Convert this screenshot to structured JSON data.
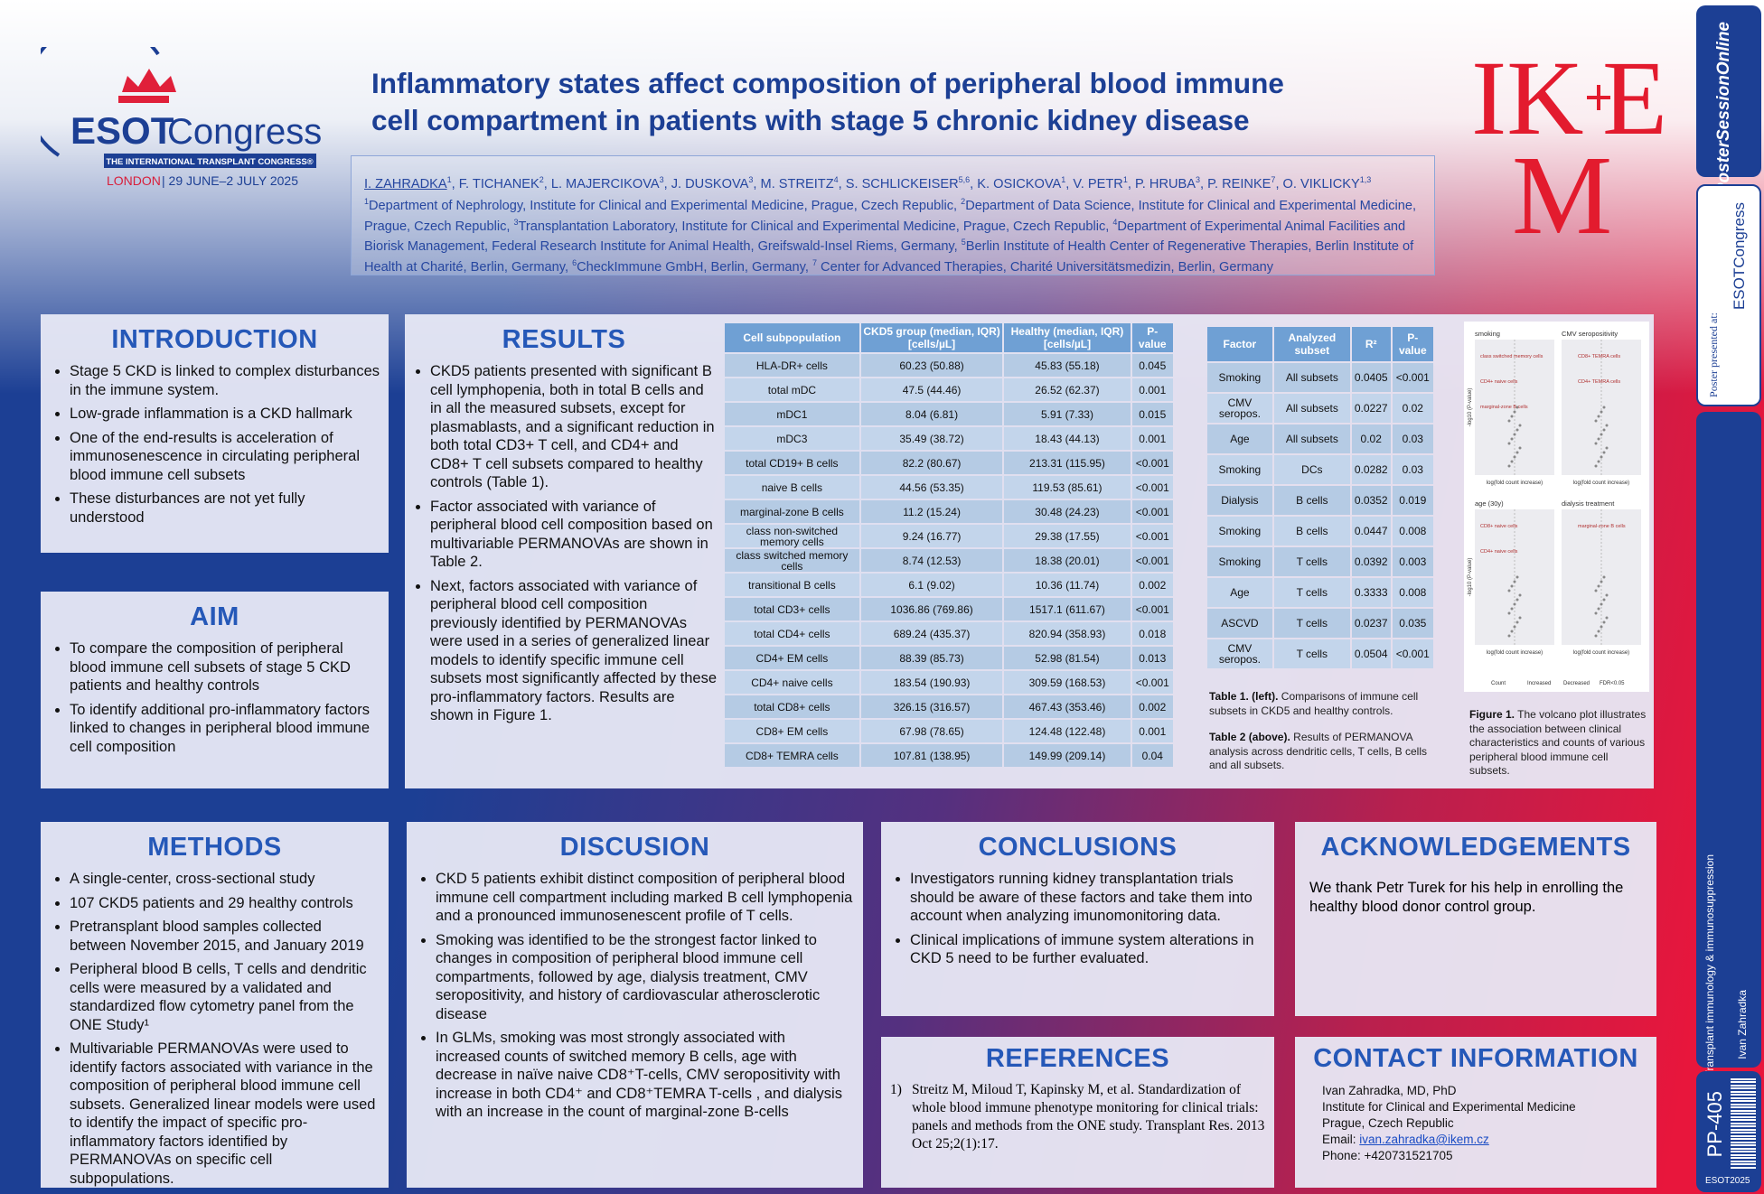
{
  "logos": {
    "esot_word": "ESOT",
    "esot_congress": "Congress",
    "esot_tagline": "THE INTERNATIONAL TRANSPLANT CONGRESS®",
    "esot_city": "LONDON",
    "esot_dates": "| 29 JUNE–2 JULY 2025",
    "ikem_letters": [
      "IK",
      "E",
      "M"
    ]
  },
  "header": {
    "title_lines": [
      "Inflammatory states affect composition of peripheral blood immune",
      "cell compartment in patients with stage 5 chronic kidney disease"
    ],
    "authors": [
      {
        "name": "I. ZAHRADKA",
        "sup": "1"
      },
      {
        "name": "F. TICHANEK",
        "sup": "2"
      },
      {
        "name": "L. MAJERCIKOVA",
        "sup": "3"
      },
      {
        "name": "J. DUSKOVA",
        "sup": "3"
      },
      {
        "name": "M. STREITZ",
        "sup": "4"
      },
      {
        "name": "S. SCHLICKEISER",
        "sup": "5,6"
      },
      {
        "name": "K. OSICKOVA",
        "sup": "1"
      },
      {
        "name": "V. PETR",
        "sup": "1"
      },
      {
        "name": "P. HRUBA",
        "sup": "3"
      },
      {
        "name": "P. REINKE",
        "sup": "7"
      },
      {
        "name": "O. VIKLICKY",
        "sup": "1,3"
      }
    ],
    "affiliations": [
      {
        "sup": "1",
        "text": "Department of Nephrology, Institute for Clinical and Experimental Medicine, Prague, Czech Republic, "
      },
      {
        "sup": "2",
        "text": "Department of Data Science, Institute for Clinical and Experimental Medicine, Prague, Czech Republic, "
      },
      {
        "sup": "3",
        "text": "Transplantation Laboratory, Institute for Clinical and Experimental Medicine, Prague, Czech Republic, "
      },
      {
        "sup": "4",
        "text": "Department of Experimental Animal Facilities and Biorisk Management, Federal Research Institute for Animal Health, Greifswald-Insel Riems, Germany, "
      },
      {
        "sup": "5",
        "text": "Berlin Institute of Health Center of Regenerative Therapies, Berlin Institute of Health at Charité, Berlin, Germany, "
      },
      {
        "sup": "6",
        "text": "CheckImmune GmbH, Berlin, Germany, "
      },
      {
        "sup": "7",
        "text": " Center for Advanced Therapies, Charité Universitätsmedizin, Berlin, Germany"
      }
    ]
  },
  "introduction": {
    "title": "INTRODUCTION",
    "bullets": [
      "Stage 5 CKD is linked to complex disturbances in the immune system.",
      "Low-grade inflammation is a CKD hallmark",
      "One of the end-results is acceleration of immunosenescence in circulating peripheral blood immune cell subsets",
      "These disturbances are not yet fully understood"
    ]
  },
  "aim": {
    "title": "AIM",
    "bullets": [
      "To compare the composition of peripheral blood immune cell subsets of stage 5 CKD patients and healthy controls",
      "To identify additional pro-inflammatory factors linked to changes in peripheral blood immune cell composition"
    ]
  },
  "results": {
    "title": "RESULTS",
    "bullets": [
      "CKD5 patients presented with significant B cell lymphopenia, both in total B cells and in all the measured subsets, except for plasmablasts, and a significant reduction in both total CD3+ T cell, and CD4+ and CD8+ T cell subsets compared to healthy controls (Table 1).",
      "Factor associated with variance of peripheral blood cell composition based on multivariable PERMANOVAs are shown in Table 2.",
      "Next, factors associated with variance of peripheral blood cell composition previously identified by PERMANOVAs were used in a series of generalized linear models to identify specific immune cell subsets most significantly affected by these pro-inflammatory factors. Results are shown in Figure 1."
    ]
  },
  "table1": {
    "header": [
      "Cell subpopulation",
      "CKD5 group (median, IQR) [cells/µL]",
      "Healthy (median, IQR) [cells/µL]",
      "P-value"
    ],
    "rows": [
      [
        "HLA-DR+ cells",
        "60.23 (50.88)",
        "45.83 (55.18)",
        "0.045"
      ],
      [
        "total mDC",
        "47.5 (44.46)",
        "26.52 (62.37)",
        "0.001"
      ],
      [
        "mDC1",
        "8.04 (6.81)",
        "5.91 (7.33)",
        "0.015"
      ],
      [
        "mDC3",
        "35.49 (38.72)",
        "18.43 (44.13)",
        "0.001"
      ],
      [
        "total CD19+ B cells",
        "82.2 (80.67)",
        "213.31 (115.95)",
        "<0.001"
      ],
      [
        "naive B cells",
        "44.56 (53.35)",
        "119.53 (85.61)",
        "<0.001"
      ],
      [
        "marginal-zone B cells",
        "11.2 (15.24)",
        "30.48 (24.23)",
        "<0.001"
      ],
      [
        "class non-switched memory cells",
        "9.24 (16.77)",
        "29.38 (17.55)",
        "<0.001"
      ],
      [
        "class switched memory cells",
        "8.74 (12.53)",
        "18.38 (20.01)",
        "<0.001"
      ],
      [
        "transitional B cells",
        "6.1 (9.02)",
        "10.36 (11.74)",
        "0.002"
      ],
      [
        "total CD3+ cells",
        "1036.86 (769.86)",
        "1517.1 (611.67)",
        "<0.001"
      ],
      [
        "total CD4+ cells",
        "689.24 (435.37)",
        "820.94 (358.93)",
        "0.018"
      ],
      [
        "CD4+ EM cells",
        "88.39 (85.73)",
        "52.98 (81.54)",
        "0.013"
      ],
      [
        "CD4+ naive cells",
        "183.54 (190.93)",
        "309.59 (168.53)",
        "<0.001"
      ],
      [
        "total CD8+ cells",
        "326.15 (316.57)",
        "467.43 (353.46)",
        "0.002"
      ],
      [
        "CD8+ EM cells",
        "67.98 (78.65)",
        "124.48 (122.48)",
        "0.001"
      ],
      [
        "CD8+ TEMRA cells",
        "107.81 (138.95)",
        "149.99 (209.14)",
        "0.04"
      ]
    ],
    "caption_label": "Table 1. (left).",
    "caption": " Comparisons of immune cell subsets in CKD5 and healthy controls."
  },
  "table2": {
    "header": [
      "Factor",
      "Analyzed subset",
      "R²",
      "P-value"
    ],
    "rows": [
      [
        "Smoking",
        "All subsets",
        "0.0405",
        "<0.001"
      ],
      [
        "CMV seropos.",
        "All subsets",
        "0.0227",
        "0.02"
      ],
      [
        "Age",
        "All subsets",
        "0.02",
        "0.03"
      ],
      [
        "Smoking",
        "DCs",
        "0.0282",
        "0.03"
      ],
      [
        "Dialysis",
        "B cells",
        "0.0352",
        "0.019"
      ],
      [
        "Smoking",
        "B cells",
        "0.0447",
        "0.008"
      ],
      [
        "Smoking",
        "T cells",
        "0.0392",
        "0.003"
      ],
      [
        "Age",
        "T cells",
        "0.3333",
        "0.008"
      ],
      [
        "ASCVD",
        "T cells",
        "0.0237",
        "0.035"
      ],
      [
        "CMV seropos.",
        "T cells",
        "0.0504",
        "<0.001"
      ]
    ],
    "caption_label": "Table 2 (above).",
    "caption": " Results of PERMANOVA analysis across dendritic cells, T cells, B cells and all subsets."
  },
  "figure1": {
    "panels": [
      {
        "title": "smoking",
        "labels": [
          "class switched memory cells",
          "CD4+ naive cells",
          "marginal-zone B cells"
        ]
      },
      {
        "title": "CMV seropositivity",
        "labels": [
          "CD8+ TEMRA cells",
          "CD4+ TEMRA cells"
        ]
      },
      {
        "title": "age (30y)",
        "labels": [
          "CD8+ naive cells",
          "CD4+ naive cells"
        ]
      },
      {
        "title": "dialysis treatment",
        "labels": [
          "marginal-zone B cells"
        ]
      }
    ],
    "y_label": "-log10 (P-value)",
    "x_label": "log(fold count increase)",
    "legend": [
      "Count",
      "Increased",
      "Decreased",
      "FDR<0.05"
    ],
    "caption_label": "Figure 1.",
    "caption": " The volcano plot illustrates the association between clinical characteristics and counts of various peripheral blood immune cell subsets."
  },
  "methods": {
    "title": "METHODS",
    "bullets": [
      "A single-center, cross-sectional study",
      "107 CKD5 patients and 29 healthy controls",
      "Pretransplant blood samples collected between November 2015, and January 2019",
      "Peripheral blood B cells, T cells and dendritic cells were measured by a validated and standardized  flow cytometry panel from the ONE Study¹",
      "Multivariable PERMANOVAs were used to identify factors associated with variance in the composition of peripheral blood immune cell subsets. Generalized linear models were used to identify the impact of specific pro-inflammatory factors identified by PERMANOVAs on specific cell subpopulations."
    ]
  },
  "discussion": {
    "title": "DISCUSION",
    "bullets": [
      "CKD 5 patients exhibit distinct composition of peripheral blood immune cell compartment including marked B cell lymphopenia and a pronounced immunosenescent profile of T cells.",
      "Smoking was identified to be the strongest factor linked to changes in composition of peripheral blood immune cell compartments, followed by age, dialysis treatment, CMV seropositivity, and history of cardiovascular atherosclerotic disease",
      "In GLMs, smoking was most strongly associated with increased counts of switched memory B cells, age with decrease in naïve naive CD8⁺T-cells, CMV seropositivity with increase in both CD4⁺ and CD8⁺TEMRA T-cells , and dialysis with an increase in the count of marginal-zone B-cells"
    ]
  },
  "conclusions": {
    "title": "CONCLUSIONS",
    "bullets": [
      "Investigators running kidney transplantation trials should be aware of these factors and take them into account when analyzing imunomonitoring data.",
      "Clinical implications of immune system alterations in CKD 5 need to be further evaluated."
    ]
  },
  "acknowledgements": {
    "title": "ACKNOWLEDGEMENTS",
    "text": "We thank Petr Turek for his help in enrolling the healthy blood donor control group."
  },
  "references": {
    "title": "REFERENCES",
    "items": [
      {
        "num": "1)",
        "text": "Streitz M, Miloud T, Kapinsky M, et al. Standardization of whole blood immune phenotype monitoring for clinical trials: panels and methods from the ONE study. Transplant Res. 2013 Oct 25;2(1):17."
      }
    ]
  },
  "contact": {
    "title": "CONTACT INFORMATION",
    "lines": [
      "Ivan Zahradka, MD, PhD",
      "Institute for Clinical and Experimental Medicine",
      "Prague, Czech Republic"
    ],
    "email_label": "Email: ",
    "email": "ivan.zahradka@ikem.cz",
    "phone": "Phone: +420731521705"
  },
  "sidebar": {
    "pso": "PosterSessionOnline",
    "presented": "Poster presented at:",
    "esot": "ESOTCongress",
    "topic": "Transplant immunology & immunosuppression",
    "author": "Ivan Zahradka",
    "code": "PP-405",
    "event": "ESOT2025"
  }
}
